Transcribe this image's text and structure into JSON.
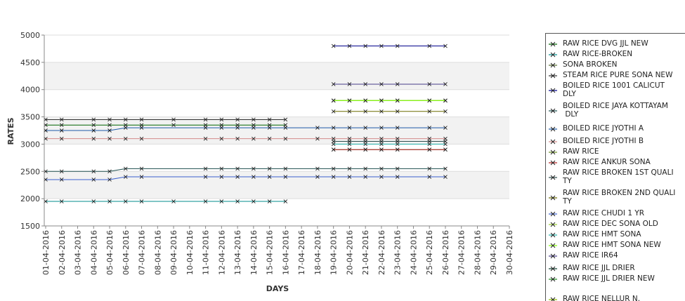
{
  "chart_data": {
    "type": "line",
    "xlabel": "DAYS",
    "ylabel": "RATES",
    "ylim": [
      1500,
      5000
    ],
    "yticks": [
      "1500",
      "2000",
      "2500",
      "3000",
      "3500",
      "4000",
      "4500",
      "5000"
    ],
    "categories": [
      "01-04-2016",
      "02-04-2016",
      "03-04-2016",
      "04-04-2016",
      "05-04-2016",
      "06-04-2016",
      "07-04-2016",
      "08-04-2016",
      "09-04-2016",
      "10-04-2016",
      "11-04-2016",
      "12-04-2016",
      "13-04-2016",
      "14-04-2016",
      "15-04-2016",
      "16-04-2016",
      "17-04-2016",
      "18-04-2016",
      "19-04-2016",
      "20-04-2016",
      "21-04-2016",
      "22-04-2016",
      "23-04-2016",
      "24-04-2016",
      "25-04-2016",
      "26-04-2016",
      "27-04-2016",
      "28-04-2016",
      "29-04-2016",
      "30-04-2016"
    ],
    "grid": "horizontal bands",
    "legend_position": "right",
    "series": [
      {
        "name": "RAW RICE DVG JJL NEW",
        "color": "#006400",
        "values": [
          3350,
          3350,
          null,
          3350,
          3350,
          3350,
          3350,
          null,
          3350,
          null,
          3350,
          3350,
          3350,
          3350,
          3350,
          3350,
          null,
          null,
          null,
          null,
          null,
          null,
          null,
          null,
          null,
          null,
          null,
          null,
          null,
          null
        ]
      },
      {
        "name": "RAW RICE-BROKEN",
        "color": "#008b8b",
        "values": [
          1950,
          1950,
          null,
          1950,
          1950,
          1950,
          1950,
          null,
          1950,
          null,
          1950,
          1950,
          1950,
          1950,
          1950,
          1950,
          null,
          null,
          null,
          null,
          null,
          null,
          null,
          null,
          null,
          null,
          null,
          null,
          null,
          null
        ]
      },
      {
        "name": "SONA BROKEN",
        "color": "#556b2f",
        "values": [
          null,
          null,
          null,
          null,
          null,
          null,
          null,
          null,
          null,
          null,
          null,
          null,
          null,
          null,
          null,
          null,
          null,
          null,
          2900,
          2900,
          2900,
          2900,
          2900,
          null,
          2900,
          2900,
          null,
          null,
          null,
          null
        ]
      },
      {
        "name": "STEAM RICE PURE SONA NEW",
        "color": "#2f2f2f",
        "values": [
          3450,
          3450,
          null,
          3450,
          3450,
          3450,
          3450,
          null,
          3450,
          null,
          3450,
          3450,
          3450,
          3450,
          3450,
          3450,
          null,
          null,
          null,
          null,
          null,
          null,
          null,
          null,
          null,
          null,
          null,
          null,
          null,
          null
        ]
      },
      {
        "name": "BOILED RICE 1001 CALICUT DLY",
        "color": "#00008b",
        "values": [
          null,
          null,
          null,
          null,
          null,
          null,
          null,
          null,
          null,
          null,
          null,
          null,
          null,
          null,
          null,
          null,
          null,
          null,
          4800,
          4800,
          4800,
          4800,
          4800,
          null,
          4800,
          4800,
          null,
          null,
          null,
          null
        ]
      },
      {
        "name": "BOILED RICE JAYA KOTTAYAM DLY",
        "color": "#1f4f4f",
        "values": [
          2500,
          2500,
          null,
          2500,
          2500,
          2550,
          2550,
          null,
          null,
          null,
          2550,
          2550,
          2550,
          2550,
          2550,
          2550,
          null,
          2550,
          2550,
          2550,
          2550,
          2550,
          2550,
          null,
          2550,
          2550,
          null,
          null,
          null,
          null
        ]
      },
      {
        "name": "BOILED RICE JYOTHI A",
        "color": "#1e5aa8",
        "values": [
          3250,
          3250,
          null,
          3250,
          3250,
          3300,
          3300,
          null,
          null,
          null,
          3300,
          3300,
          3300,
          3300,
          3300,
          3300,
          null,
          3300,
          3300,
          3300,
          3300,
          3300,
          3300,
          null,
          3300,
          3300,
          null,
          null,
          null,
          null
        ]
      },
      {
        "name": "BOILED RICE JYOTHI B",
        "color": "#d48a8a",
        "values": [
          3100,
          3100,
          null,
          3100,
          3100,
          3100,
          3100,
          null,
          null,
          null,
          3100,
          3100,
          3100,
          3100,
          3100,
          3100,
          null,
          3100,
          3100,
          3100,
          3100,
          3100,
          3100,
          null,
          3100,
          3100,
          null,
          null,
          null,
          null
        ]
      },
      {
        "name": "RAW RICE",
        "color": "#6b8e23",
        "values": [
          null,
          null,
          null,
          null,
          null,
          null,
          null,
          null,
          null,
          null,
          null,
          null,
          null,
          null,
          null,
          null,
          null,
          null,
          3800,
          3800,
          3800,
          3800,
          3800,
          null,
          3800,
          3800,
          null,
          null,
          null,
          null
        ]
      },
      {
        "name": "RAW RICE ANKUR SONA",
        "color": "#b22222",
        "values": [
          null,
          null,
          null,
          null,
          null,
          null,
          null,
          null,
          null,
          null,
          null,
          null,
          null,
          null,
          null,
          null,
          null,
          null,
          2900,
          2900,
          2900,
          2900,
          2900,
          null,
          2900,
          2900,
          null,
          null,
          null,
          null
        ]
      },
      {
        "name": "RAW RICE BROKEN 1ST QUALITY",
        "color": "#2e4e4e",
        "values": [
          null,
          null,
          null,
          null,
          null,
          null,
          null,
          null,
          null,
          null,
          null,
          null,
          null,
          null,
          null,
          null,
          null,
          null,
          3050,
          3050,
          3050,
          3050,
          3050,
          null,
          3050,
          3050,
          null,
          null,
          null,
          null
        ]
      },
      {
        "name": "RAW RICE BROKEN 2ND QUALITY",
        "color": "#6b6b00",
        "values": [
          null,
          null,
          null,
          null,
          null,
          null,
          null,
          null,
          null,
          null,
          null,
          null,
          null,
          null,
          null,
          null,
          null,
          null,
          3600,
          3600,
          3600,
          3600,
          3600,
          null,
          3600,
          3600,
          null,
          null,
          null,
          null
        ]
      },
      {
        "name": "RAW RICE CHUDI 1 YR",
        "color": "#3a5fcd",
        "values": [
          2350,
          2350,
          null,
          2350,
          2350,
          2400,
          2400,
          null,
          null,
          null,
          2400,
          2400,
          2400,
          2400,
          2400,
          2400,
          null,
          2400,
          2400,
          2400,
          2400,
          2400,
          2400,
          null,
          2400,
          2400,
          null,
          null,
          null,
          null
        ]
      },
      {
        "name": "RAW RICE DEC SONA OLD",
        "color": "#9acd32",
        "values": [
          null,
          null,
          null,
          null,
          null,
          null,
          null,
          null,
          null,
          null,
          null,
          null,
          null,
          null,
          null,
          null,
          null,
          null,
          3800,
          3800,
          3800,
          3800,
          3800,
          null,
          3800,
          3800,
          null,
          null,
          null,
          null
        ]
      },
      {
        "name": "RAW RICE HMT SONA",
        "color": "#20b2aa",
        "values": [
          null,
          null,
          null,
          null,
          null,
          null,
          null,
          null,
          null,
          null,
          null,
          null,
          null,
          null,
          null,
          null,
          null,
          null,
          3000,
          3000,
          3000,
          3000,
          3000,
          null,
          3000,
          3000,
          null,
          null,
          null,
          null
        ]
      },
      {
        "name": "RAW RICE HMT SONA NEW",
        "color": "#7fff00",
        "values": [
          null,
          null,
          null,
          null,
          null,
          null,
          null,
          null,
          null,
          null,
          null,
          null,
          null,
          null,
          null,
          null,
          null,
          null,
          3800,
          3800,
          3800,
          3800,
          3800,
          null,
          3800,
          3800,
          null,
          null,
          null,
          null
        ]
      },
      {
        "name": "RAW RICE IR64",
        "color": "#483d8b",
        "values": [
          null,
          null,
          null,
          null,
          null,
          null,
          null,
          null,
          null,
          null,
          null,
          null,
          null,
          null,
          null,
          null,
          null,
          null,
          4100,
          4100,
          4100,
          4100,
          4100,
          null,
          4100,
          4100,
          null,
          null,
          null,
          null
        ]
      },
      {
        "name": "RAW RICE JJL DRIER",
        "color": "#0b3d2e",
        "values": [
          null,
          null,
          null,
          null,
          null,
          null,
          null,
          null,
          null,
          null,
          null,
          null,
          null,
          null,
          null,
          null,
          null,
          null,
          null,
          null,
          null,
          null,
          null,
          null,
          null,
          null,
          null,
          null,
          null,
          null
        ]
      },
      {
        "name": "RAW RICE JJL DRIER NEW",
        "color": "#228b22",
        "values": [
          null,
          null,
          null,
          null,
          null,
          null,
          null,
          null,
          null,
          null,
          null,
          null,
          null,
          null,
          null,
          null,
          null,
          null,
          null,
          null,
          null,
          null,
          null,
          null,
          null,
          null,
          null,
          null,
          null,
          null
        ]
      },
      {
        "name": "RAW RICE NELLUR N.",
        "color": "#8fbc00",
        "values": [
          null,
          null,
          null,
          null,
          null,
          null,
          null,
          null,
          null,
          null,
          null,
          null,
          null,
          null,
          null,
          null,
          null,
          null,
          null,
          null,
          null,
          null,
          null,
          null,
          null,
          null,
          null,
          null,
          null,
          null
        ]
      }
    ]
  },
  "legend_labels": [
    "RAW RICE DVG JJL NEW",
    "RAW RICE-BROKEN",
    "SONA BROKEN",
    "STEAM RICE PURE SONA NEW",
    "BOILED RICE 1001 CALICUT\nDLY",
    "BOILED RICE JAYA KOTTAYAM\n DLY",
    "BOILED RICE JYOTHI A",
    "BOILED RICE JYOTHI B",
    "RAW RICE",
    "RAW RICE ANKUR SONA",
    "RAW RICE BROKEN 1ST QUALI\nTY",
    "RAW RICE BROKEN 2ND QUALI\nTY",
    "RAW RICE CHUDI 1 YR",
    "RAW RICE DEC SONA OLD",
    "RAW RICE HMT SONA",
    "RAW RICE HMT SONA NEW",
    "RAW RICE IR64",
    "RAW RICE JJL DRIER",
    "RAW RICE JJL DRIER NEW",
    "RAW RICE NELLUR N."
  ]
}
